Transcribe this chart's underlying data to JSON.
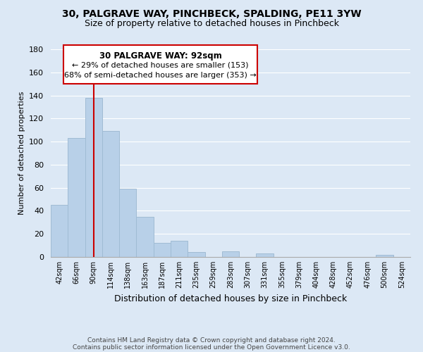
{
  "title": "30, PALGRAVE WAY, PINCHBECK, SPALDING, PE11 3YW",
  "subtitle": "Size of property relative to detached houses in Pinchbeck",
  "xlabel": "Distribution of detached houses by size in Pinchbeck",
  "ylabel": "Number of detached properties",
  "bar_labels": [
    "42sqm",
    "66sqm",
    "90sqm",
    "114sqm",
    "138sqm",
    "163sqm",
    "187sqm",
    "211sqm",
    "235sqm",
    "259sqm",
    "283sqm",
    "307sqm",
    "331sqm",
    "355sqm",
    "379sqm",
    "404sqm",
    "428sqm",
    "452sqm",
    "476sqm",
    "500sqm",
    "524sqm"
  ],
  "bar_values": [
    45,
    103,
    138,
    109,
    59,
    35,
    12,
    14,
    4,
    0,
    5,
    0,
    3,
    0,
    0,
    0,
    0,
    0,
    0,
    2,
    0
  ],
  "bar_color": "#b8d0e8",
  "bar_edge_color": "#a0bcd4",
  "ylim": [
    0,
    180
  ],
  "yticks": [
    0,
    20,
    40,
    60,
    80,
    100,
    120,
    140,
    160,
    180
  ],
  "vline_x": 2,
  "vline_color": "#cc0000",
  "annotation_title": "30 PALGRAVE WAY: 92sqm",
  "annotation_line1": "← 29% of detached houses are smaller (153)",
  "annotation_line2": "68% of semi-detached houses are larger (353) →",
  "annotation_box_color": "#ffffff",
  "annotation_box_edge": "#cc0000",
  "footer_line1": "Contains HM Land Registry data © Crown copyright and database right 2024.",
  "footer_line2": "Contains public sector information licensed under the Open Government Licence v3.0.",
  "background_color": "#dce8f5",
  "plot_background": "#dce8f5",
  "grid_color": "#ffffff"
}
